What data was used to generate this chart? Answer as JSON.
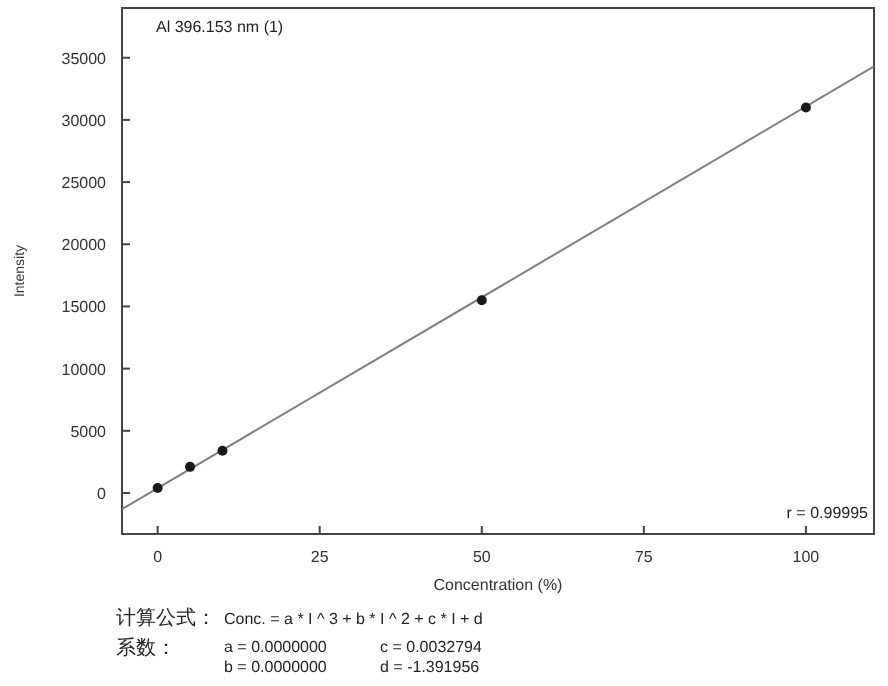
{
  "chart_data": {
    "type": "scatter",
    "title": "Al 396.153 nm (1)",
    "xlabel": "Concentration (%)",
    "ylabel": "Intensity",
    "x": [
      0,
      5,
      10,
      50,
      100
    ],
    "series": [
      {
        "type": "scatter",
        "color": "#1a1a1a",
        "marker": "circle",
        "values": [
          400,
          2100,
          3400,
          15500,
          31000
        ]
      },
      {
        "type": "line",
        "color": "#7f7f7f",
        "x": [
          -5.5,
          110.5
        ],
        "values": [
          -1300,
          34300
        ]
      }
    ],
    "xlim": [
      -5.5,
      110.5
    ],
    "xticks": [
      0,
      25,
      50,
      75,
      100
    ],
    "ylim": [
      -3300,
      39000
    ],
    "yticks": [
      0,
      5000,
      10000,
      15000,
      20000,
      25000,
      30000,
      35000
    ],
    "grid": false,
    "annotations": [
      "r = 0.99995",
      "计算公式：",
      "Conc. = a * I ^ 3 + b * I ^ 2 + c * I + d",
      "系数：",
      "a = 0.0000000",
      "c = 0.0032794",
      "b = 0.0000000",
      "d = -1.391956"
    ]
  }
}
